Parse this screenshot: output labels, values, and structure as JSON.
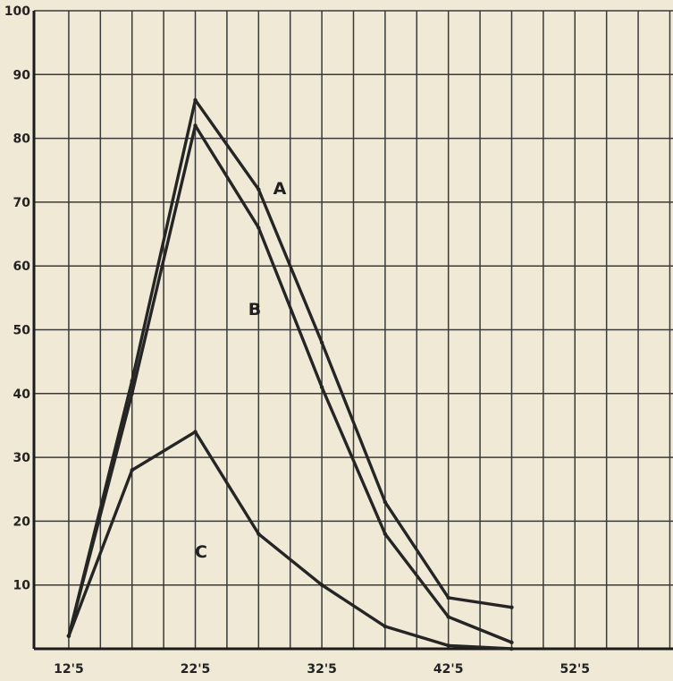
{
  "chart_data": {
    "type": "line",
    "title": "",
    "xlabel": "",
    "ylabel": "",
    "xlim": [
      97.5,
      602.5
    ],
    "ylim": [
      0,
      100
    ],
    "grid": true,
    "x_ticks": [
      "12'5",
      "22'5",
      "32'5",
      "42'5",
      "52'5"
    ],
    "y_ticks": [
      "10",
      "20",
      "30",
      "40",
      "50",
      "60",
      "70",
      "80",
      "90",
      "100"
    ],
    "x": [
      125,
      175,
      225,
      275,
      325,
      375,
      425,
      475
    ],
    "series": [
      {
        "name": "A",
        "values": [
          2,
          42,
          86,
          72,
          48,
          23,
          8,
          6.5
        ]
      },
      {
        "name": "B",
        "values": [
          2,
          40,
          82,
          66,
          41,
          18,
          5,
          1
        ]
      },
      {
        "name": "C",
        "values": [
          2,
          28,
          34,
          18,
          10,
          3.5,
          0.5,
          0
        ]
      }
    ],
    "line_color": "#252525",
    "background_color": "#efe9d6"
  }
}
